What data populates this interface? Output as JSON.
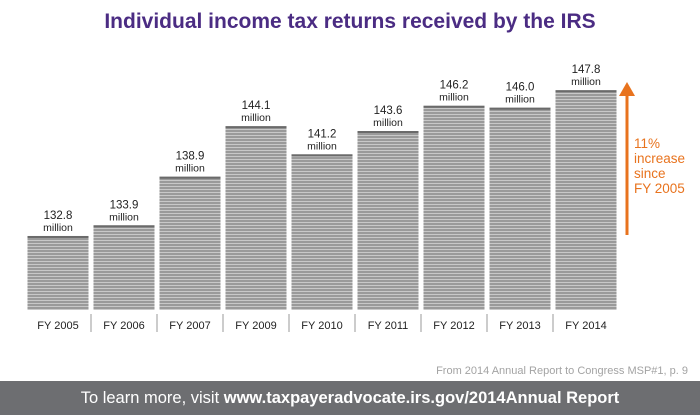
{
  "chart_data": {
    "type": "bar",
    "title": "Individual income tax returns received by the IRS",
    "categories": [
      "FY 2005",
      "FY 2006",
      "FY 2007",
      "FY 2009",
      "FY 2010",
      "FY 2011",
      "FY 2012",
      "FY 2013",
      "FY 2014"
    ],
    "values": [
      132.8,
      133.9,
      138.9,
      144.1,
      141.2,
      143.6,
      146.2,
      146.0,
      147.8
    ],
    "value_labels": [
      "132.8",
      "133.9",
      "138.9",
      "144.1",
      "141.2",
      "143.6",
      "146.2",
      "146.0",
      "147.8"
    ],
    "unit_label": "million",
    "grid": false,
    "colors": {
      "paper": "#9a9a9a",
      "paper_light": "#c8c8c8",
      "paper_dark": "#6a6a6a",
      "title": "#4b2c83",
      "accent": "#e8731e"
    }
  },
  "annotation": {
    "lines": [
      "11%",
      "increase",
      "since",
      "FY 2005"
    ]
  },
  "source": "From 2014 Annual Report to Congress MSP#1, p. 9",
  "footer": {
    "prefix": "To learn more, visit ",
    "url": "www.taxpayeradvocate.irs.gov/2014Annual Report"
  }
}
